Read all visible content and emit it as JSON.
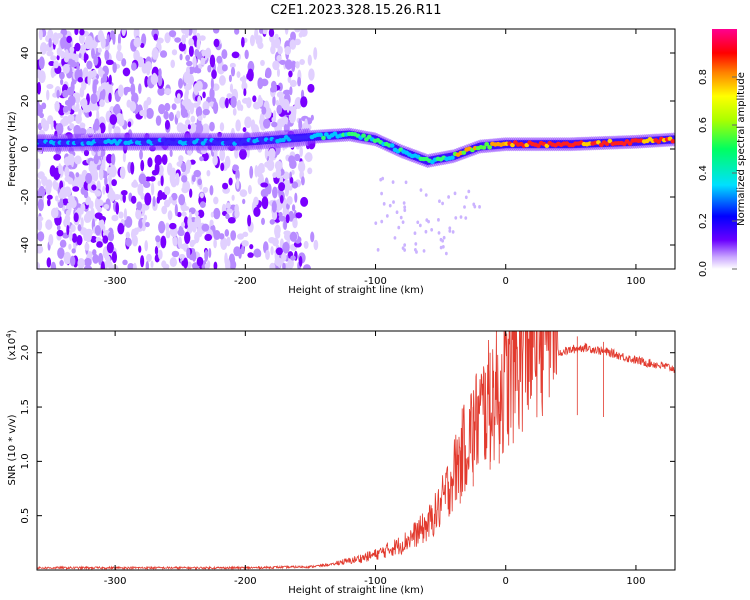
{
  "title": "C2E1.2023.328.15.26.R11",
  "colors": {
    "snr_line": "#e23a2e",
    "axis": "#000000",
    "tick_grey": "#555555"
  },
  "chart_data": [
    {
      "type": "heatmap",
      "name": "spectrogram",
      "xlabel": "Height of straight line (km)",
      "ylabel": "Frequency (Hz)",
      "xlim": [
        -360,
        130
      ],
      "ylim": [
        -50,
        50
      ],
      "xticks": [
        -300,
        -200,
        -100,
        0,
        100
      ],
      "yticks": [
        40,
        20,
        0,
        -20,
        -40
      ],
      "xtick_labels": [
        "-300",
        "-200",
        "-100",
        "0",
        "100"
      ],
      "ytick_labels": [
        "40",
        "20",
        "0",
        "-20",
        "-40"
      ],
      "ridge": [
        {
          "x": -350,
          "f": 2.5
        },
        {
          "x": -300,
          "f": 3
        },
        {
          "x": -250,
          "f": 3
        },
        {
          "x": -200,
          "f": 3
        },
        {
          "x": -150,
          "f": 5
        },
        {
          "x": -120,
          "f": 6
        },
        {
          "x": -100,
          "f": 4
        },
        {
          "x": -80,
          "f": -1
        },
        {
          "x": -60,
          "f": -5
        },
        {
          "x": -40,
          "f": -3
        },
        {
          "x": -20,
          "f": 1
        },
        {
          "x": 0,
          "f": 2
        },
        {
          "x": 50,
          "f": 2
        },
        {
          "x": 100,
          "f": 3
        },
        {
          "x": 130,
          "f": 4
        }
      ],
      "colorbar": {
        "label": "Normalized spectral amplitude",
        "range": [
          0.0,
          1.0
        ],
        "ticks": [
          0.0,
          0.2,
          0.4,
          0.6,
          0.8
        ],
        "tick_labels": [
          "0.0",
          "0.2",
          "0.4",
          "0.6",
          "0.8"
        ]
      }
    },
    {
      "type": "line",
      "name": "snr",
      "xlabel": "Height of straight line (km)",
      "ylabel": "SNR (10 * v/v)",
      "scale_note": "(x10",
      "scale_exp": "4",
      "scale_close": ")",
      "xlim": [
        -360,
        130
      ],
      "ylim": [
        0,
        2.2
      ],
      "xticks": [
        -300,
        -200,
        -100,
        0,
        100
      ],
      "yticks": [
        0.5,
        1.0,
        1.5,
        2.0
      ],
      "xtick_labels": [
        "-300",
        "-200",
        "-100",
        "0",
        "100"
      ],
      "ytick_labels": [
        "0.5",
        "1.0",
        "1.5",
        "2.0"
      ],
      "envelope": [
        {
          "x": -360,
          "y": 0.02
        },
        {
          "x": -200,
          "y": 0.02
        },
        {
          "x": -150,
          "y": 0.03
        },
        {
          "x": -120,
          "y": 0.07
        },
        {
          "x": -100,
          "y": 0.12
        },
        {
          "x": -80,
          "y": 0.2
        },
        {
          "x": -60,
          "y": 0.35
        },
        {
          "x": -50,
          "y": 0.5
        },
        {
          "x": -40,
          "y": 0.75
        },
        {
          "x": -30,
          "y": 1.0
        },
        {
          "x": -20,
          "y": 1.2
        },
        {
          "x": -10,
          "y": 1.35
        },
        {
          "x": 0,
          "y": 1.45
        },
        {
          "x": 10,
          "y": 1.65
        },
        {
          "x": 20,
          "y": 1.85
        },
        {
          "x": 30,
          "y": 1.95
        },
        {
          "x": 40,
          "y": 2.0
        },
        {
          "x": 60,
          "y": 2.05
        },
        {
          "x": 80,
          "y": 2.0
        },
        {
          "x": 100,
          "y": 1.93
        },
        {
          "x": 120,
          "y": 1.88
        },
        {
          "x": 130,
          "y": 1.85
        }
      ],
      "spikes": [
        {
          "x": -12,
          "y": 2.0
        },
        {
          "x": -35,
          "y": 1.1
        },
        {
          "x": -25,
          "y": 1.5
        },
        {
          "x": -5,
          "y": 1.55
        },
        {
          "x": 55,
          "y": 2.15
        },
        {
          "x": 75,
          "y": 2.1
        }
      ]
    }
  ]
}
